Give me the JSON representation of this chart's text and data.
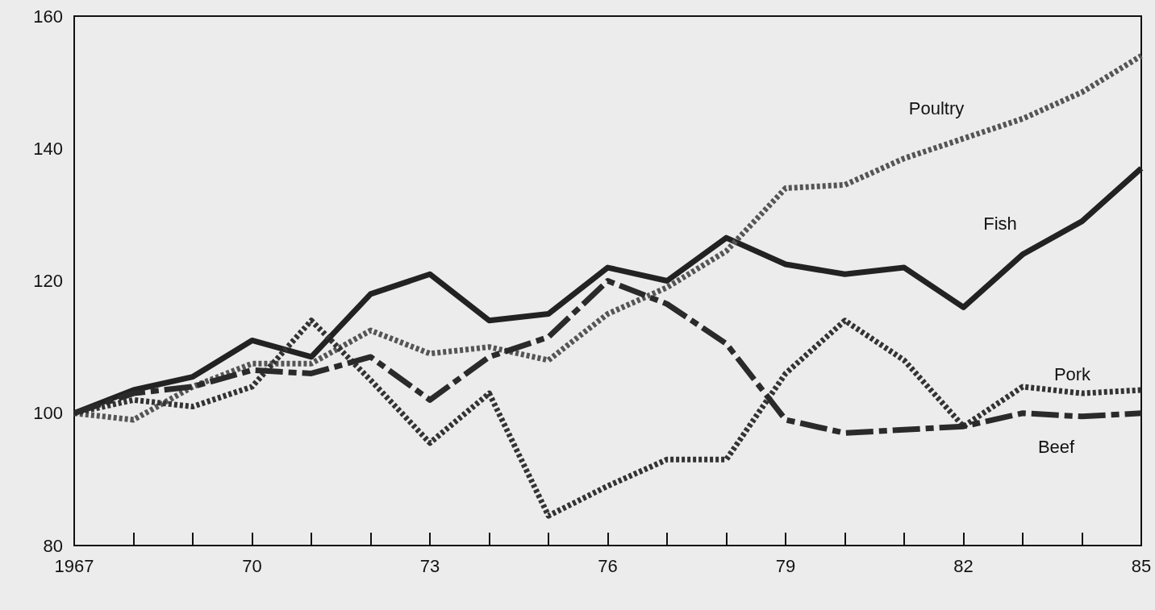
{
  "chart_data": {
    "type": "line",
    "x": [
      1967,
      1968,
      1969,
      1970,
      1971,
      1972,
      1973,
      1974,
      1975,
      1976,
      1977,
      1978,
      1979,
      1980,
      1981,
      1982,
      1983,
      1984,
      1985
    ],
    "series": [
      {
        "name": "Fish",
        "color": "#222222",
        "line_style": "solid",
        "values": [
          100,
          103.5,
          105.5,
          111,
          108.5,
          118,
          121,
          114,
          115,
          122,
          120,
          126.5,
          122.5,
          121,
          122,
          116,
          124,
          129,
          137
        ]
      },
      {
        "name": "Poultry",
        "color": "#555555",
        "line_style": "dotted",
        "values": [
          100,
          99,
          104,
          107.5,
          107.5,
          112.5,
          109,
          110,
          108,
          115,
          119,
          124.5,
          134,
          134.5,
          138.5,
          141.5,
          144.5,
          148.5,
          154
        ]
      },
      {
        "name": "Pork",
        "color": "#333333",
        "line_style": "dotted",
        "values": [
          100,
          102,
          101,
          104,
          114,
          105,
          95.5,
          103,
          84.5,
          89,
          93,
          93,
          106,
          114,
          108,
          98,
          104,
          103,
          103.5
        ]
      },
      {
        "name": "Beef",
        "color": "#2a2a2a",
        "line_style": "dashed",
        "values": [
          100,
          103,
          104,
          106.5,
          106,
          108.5,
          102,
          108.5,
          111.5,
          120,
          116.5,
          110.5,
          99,
          97,
          97.5,
          98,
          100,
          99.5,
          100
        ]
      }
    ],
    "xlim": [
      1967,
      1985
    ],
    "xticks": [
      1967,
      {
        "value": 1968,
        "label": null
      },
      {
        "value": 1969,
        "label": null
      },
      {
        "value": 1970,
        "label": "70"
      },
      {
        "value": 1971,
        "label": null
      },
      {
        "value": 1972,
        "label": null
      },
      {
        "value": 1973,
        "label": "73"
      },
      {
        "value": 1974,
        "label": null
      },
      {
        "value": 1975,
        "label": null
      },
      {
        "value": 1976,
        "label": "76"
      },
      {
        "value": 1977,
        "label": null
      },
      {
        "value": 1978,
        "label": null
      },
      {
        "value": 1979,
        "label": "79"
      },
      {
        "value": 1980,
        "label": null
      },
      {
        "value": 1981,
        "label": null
      },
      {
        "value": 1982,
        "label": "82"
      },
      {
        "value": 1983,
        "label": null
      },
      {
        "value": 1984,
        "label": null
      },
      {
        "value": 1985,
        "label": "85"
      }
    ],
    "ylim": [
      80,
      160
    ],
    "yticks": [
      80,
      100,
      120,
      140,
      160
    ],
    "grid": false,
    "legend": false,
    "marker": "none"
  }
}
